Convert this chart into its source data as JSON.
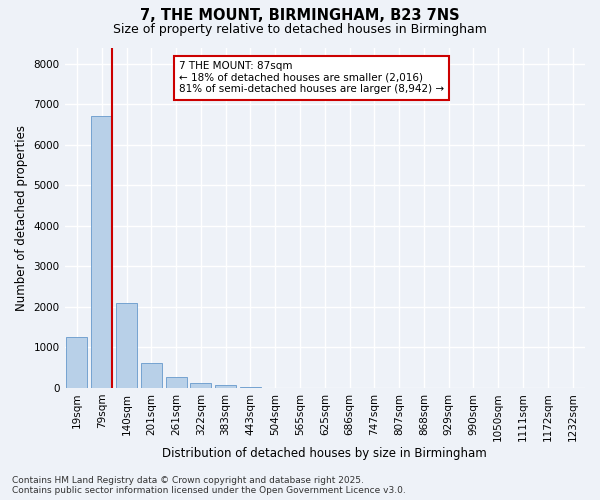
{
  "title": "7, THE MOUNT, BIRMINGHAM, B23 7NS",
  "subtitle": "Size of property relative to detached houses in Birmingham",
  "xlabel": "Distribution of detached houses by size in Birmingham",
  "ylabel": "Number of detached properties",
  "categories": [
    "19sqm",
    "79sqm",
    "140sqm",
    "201sqm",
    "261sqm",
    "322sqm",
    "383sqm",
    "443sqm",
    "504sqm",
    "565sqm",
    "625sqm",
    "686sqm",
    "747sqm",
    "807sqm",
    "868sqm",
    "929sqm",
    "990sqm",
    "1050sqm",
    "1111sqm",
    "1172sqm",
    "1232sqm"
  ],
  "values": [
    1250,
    6700,
    2100,
    620,
    270,
    120,
    60,
    10,
    0,
    0,
    0,
    0,
    0,
    0,
    0,
    0,
    0,
    0,
    0,
    0,
    0
  ],
  "bar_color": "#b8d0e8",
  "bar_edge_color": "#6699cc",
  "vline_x_data": 1.5,
  "vline_color": "#cc0000",
  "annotation_text": "7 THE MOUNT: 87sqm\n← 18% of detached houses are smaller (2,016)\n81% of semi-detached houses are larger (8,942) →",
  "annotation_box_color": "#ffffff",
  "annotation_box_edgecolor": "#cc0000",
  "ylim": [
    0,
    8400
  ],
  "yticks": [
    0,
    1000,
    2000,
    3000,
    4000,
    5000,
    6000,
    7000,
    8000
  ],
  "background_color": "#eef2f8",
  "grid_color": "#ffffff",
  "footer_line1": "Contains HM Land Registry data © Crown copyright and database right 2025.",
  "footer_line2": "Contains public sector information licensed under the Open Government Licence v3.0.",
  "title_fontsize": 10.5,
  "subtitle_fontsize": 9,
  "axis_label_fontsize": 8.5,
  "tick_fontsize": 7.5,
  "annotation_fontsize": 7.5,
  "footer_fontsize": 6.5
}
